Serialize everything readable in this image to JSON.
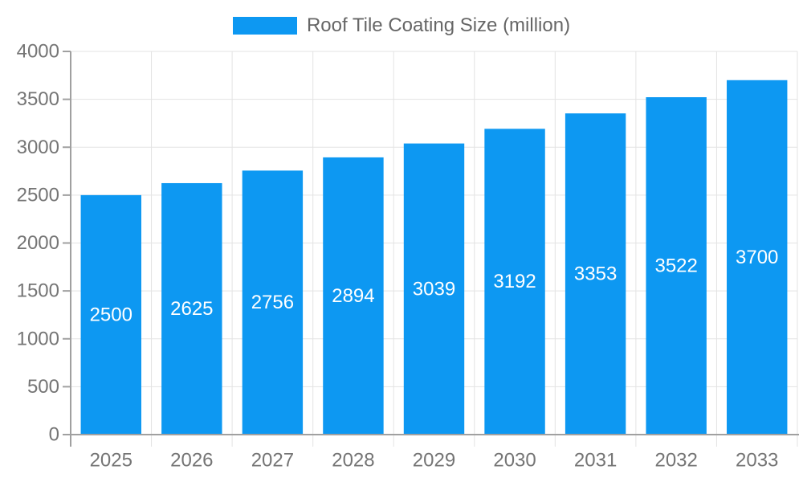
{
  "legend": {
    "label": "Roof Tile Coating Size (million)"
  },
  "chart_data": {
    "type": "bar",
    "title": "Roof Tile Coating Size (million)",
    "series_name": "Roof Tile Coating Size (million)",
    "categories": [
      "2025",
      "2026",
      "2027",
      "2028",
      "2029",
      "2030",
      "2031",
      "2032",
      "2033"
    ],
    "values": [
      2500,
      2625,
      2756,
      2894,
      3039,
      3192,
      3353,
      3522,
      3700
    ],
    "xlabel": "",
    "ylabel": "",
    "ylim": [
      0,
      4000
    ],
    "yticks": [
      0,
      500,
      1000,
      1500,
      2000,
      2500,
      3000,
      3500,
      4000
    ],
    "grid": true,
    "legend_position": "top-center",
    "bar_labels_inside": true,
    "colors": {
      "bar": "#0d98f2",
      "bar_label": "#ffffff",
      "axis_text": "#757575",
      "axis_line": "#a0a0a0",
      "grid": "#e3e3e3",
      "legend_text": "#666666",
      "background": "#ffffff"
    }
  }
}
